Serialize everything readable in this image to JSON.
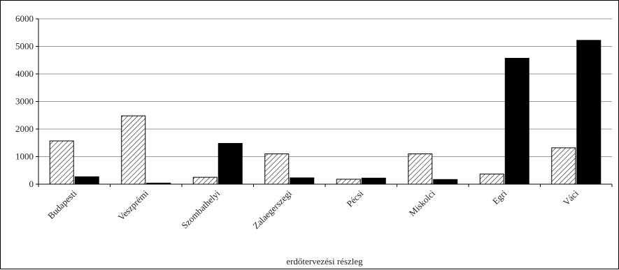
{
  "chart_data": {
    "type": "bar",
    "categories": [
      "Budapesti",
      "Veszprémi",
      "Szombathelyi",
      "Zalaegerszegi",
      "Pécsi",
      "Miskolci",
      "Egri",
      "Váci"
    ],
    "series": [
      {
        "pattern": "hatched",
        "color": "#ffffff",
        "values": [
          1570,
          2480,
          250,
          1100,
          180,
          1100,
          370,
          1320
        ]
      },
      {
        "pattern": "solid",
        "color": "#000000",
        "values": [
          270,
          40,
          1480,
          230,
          220,
          170,
          4570,
          5220
        ]
      }
    ],
    "xlabel": "erdőtervezési részleg",
    "ylabel": "",
    "ylim": [
      0,
      6000
    ],
    "yticks": [
      "0",
      "1000",
      "2000",
      "3000",
      "4000",
      "5000",
      "6000"
    ],
    "grid": "horizontal",
    "legend": "none"
  }
}
